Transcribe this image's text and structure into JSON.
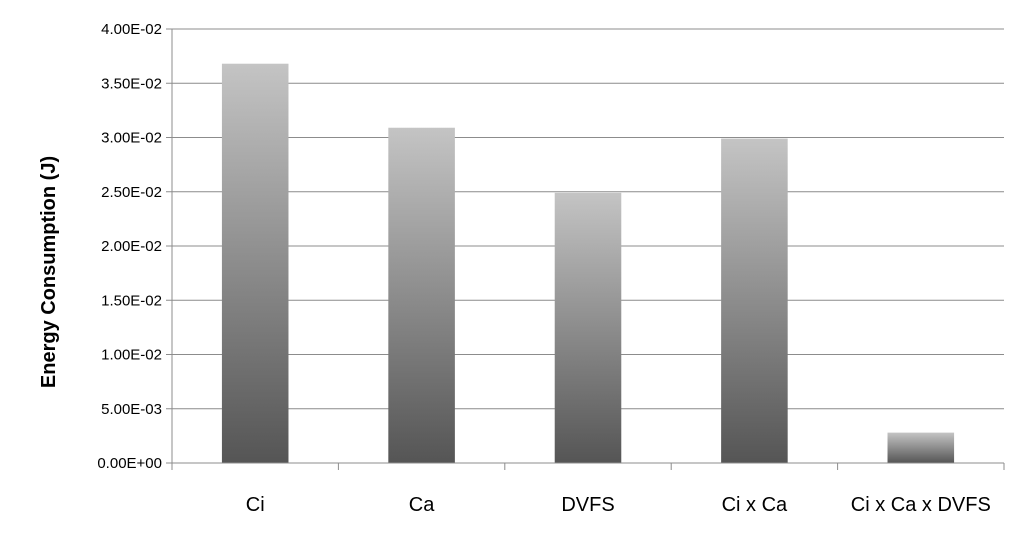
{
  "chart_data": {
    "type": "bar",
    "title": "",
    "xlabel": "",
    "ylabel": "Energy Consumption (J)",
    "categories": [
      "Ci",
      "Ca",
      "DVFS",
      "Ci x Ca",
      "Ci x Ca x DVFS"
    ],
    "values": [
      0.0368,
      0.0309,
      0.0249,
      0.0299,
      0.0028
    ],
    "ylim": [
      0,
      0.04
    ],
    "yticks": [
      0,
      0.005,
      0.01,
      0.015,
      0.02,
      0.025,
      0.03,
      0.035,
      0.04
    ],
    "ytick_labels": [
      "0.00E+00",
      "5.00E-03",
      "1.00E-02",
      "1.50E-02",
      "2.00E-02",
      "2.50E-02",
      "3.00E-02",
      "3.50E-02",
      "4.00E-02"
    ],
    "grid": "horizontal",
    "legend": "none",
    "colors": {
      "bar_top": "#c4c4c4",
      "bar_bottom": "#555555",
      "grid": "#8c8c8c",
      "axis": "#8c8c8c"
    }
  }
}
